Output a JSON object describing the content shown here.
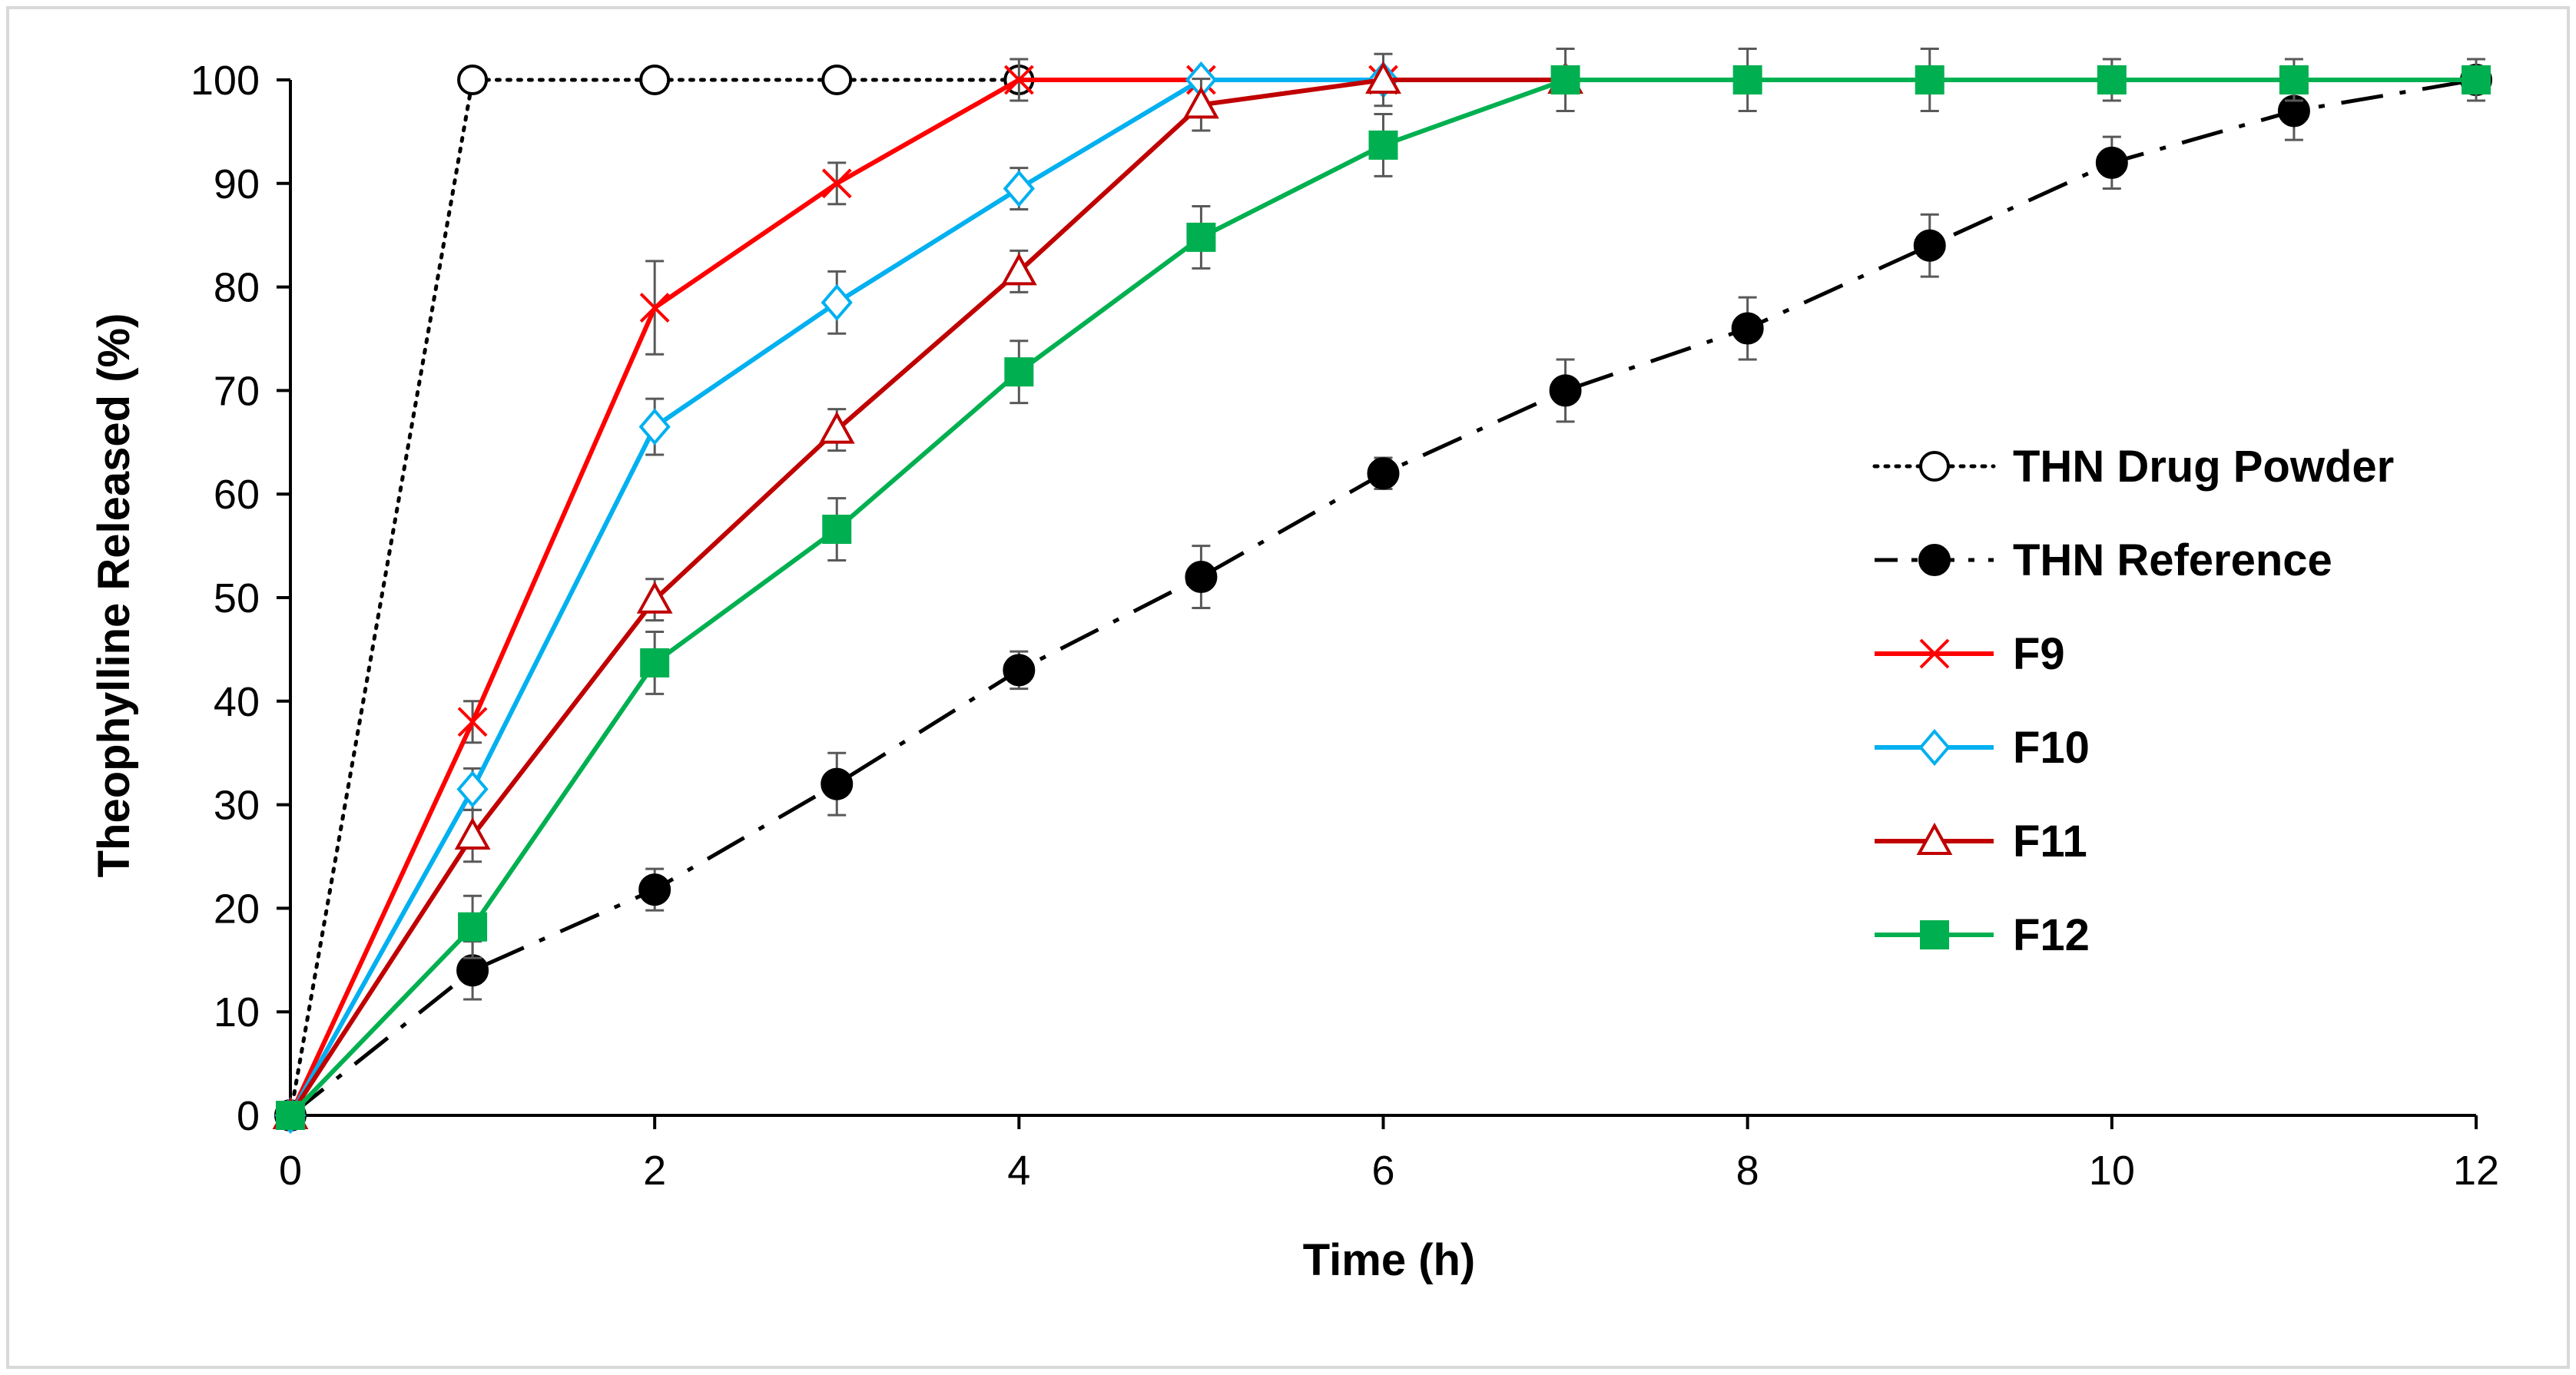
{
  "chart_data": {
    "type": "line",
    "title": "",
    "xlabel": "Time (h)",
    "ylabel": "Theophylline Released  (%)",
    "xlim": [
      0,
      12
    ],
    "ylim": [
      0,
      100
    ],
    "xticks": [
      0,
      2,
      4,
      6,
      8,
      10,
      12
    ],
    "yticks": [
      0,
      10,
      20,
      30,
      40,
      50,
      60,
      70,
      80,
      90,
      100
    ],
    "grid": false,
    "legend_position": "right",
    "series": [
      {
        "name": "THN Drug Powder",
        "color": "#000000",
        "line_style": "dotted",
        "marker": "open-circle",
        "x": [
          0,
          1,
          2,
          3,
          4
        ],
        "y": [
          0,
          100,
          100,
          100,
          100
        ],
        "error": [
          0,
          0,
          0,
          0,
          0
        ]
      },
      {
        "name": "THN Reference",
        "color": "#000000",
        "line_style": "dash-dot",
        "marker": "filled-circle",
        "x": [
          0,
          1,
          2,
          3,
          4,
          5,
          6,
          7,
          8,
          9,
          10,
          11,
          12
        ],
        "y": [
          0,
          14,
          21.8,
          32,
          43,
          52,
          62,
          70,
          76,
          84,
          92,
          97,
          100
        ],
        "error": [
          0,
          2.8,
          2,
          3,
          1.8,
          3,
          1.5,
          3,
          3,
          3,
          2.5,
          2.8,
          2
        ]
      },
      {
        "name": "F9",
        "color": "#ff0000",
        "line_style": "solid",
        "marker": "cross",
        "x": [
          0,
          1,
          2,
          3,
          4,
          5,
          6
        ],
        "y": [
          0,
          38,
          78,
          90,
          100,
          100,
          100
        ],
        "error": [
          0,
          2,
          4.5,
          2,
          2,
          0,
          0
        ]
      },
      {
        "name": "F10",
        "color": "#00b0f0",
        "line_style": "solid",
        "marker": "open-diamond",
        "x": [
          0,
          1,
          2,
          3,
          4,
          5,
          6
        ],
        "y": [
          0,
          31.5,
          66.5,
          78.5,
          89.5,
          100,
          100
        ],
        "error": [
          0,
          2,
          2.7,
          3,
          2,
          0,
          0
        ]
      },
      {
        "name": "F11",
        "color": "#c00000",
        "line_style": "solid",
        "marker": "open-triangle",
        "x": [
          0,
          1,
          2,
          3,
          4,
          5,
          6,
          7
        ],
        "y": [
          0,
          27,
          49.8,
          66.2,
          81.5,
          97.6,
          100,
          100
        ],
        "error": [
          0,
          2.5,
          2,
          2,
          2,
          2.5,
          2.5,
          0
        ]
      },
      {
        "name": "F12",
        "color": "#00b050",
        "line_style": "solid",
        "marker": "filled-square",
        "x": [
          0,
          1,
          2,
          3,
          4,
          5,
          6,
          7,
          8,
          9,
          10,
          11,
          12
        ],
        "y": [
          0,
          18.2,
          43.7,
          56.6,
          71.8,
          84.8,
          93.7,
          100,
          100,
          100,
          100,
          100,
          100
        ],
        "error": [
          0,
          3,
          3,
          3,
          3,
          3,
          3,
          3,
          3,
          3,
          2,
          2,
          2
        ]
      }
    ]
  }
}
